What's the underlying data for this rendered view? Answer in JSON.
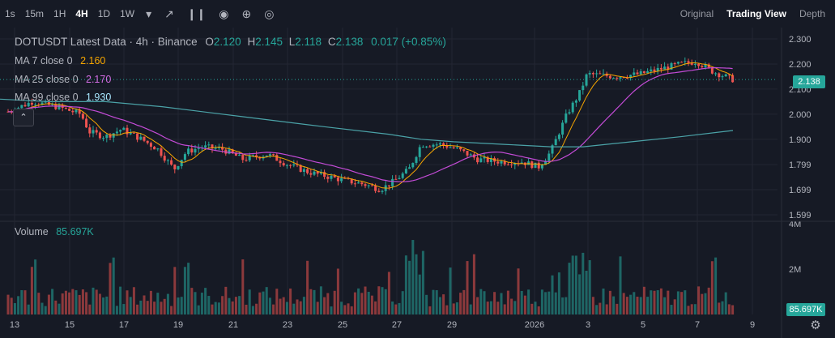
{
  "toolbar": {
    "intervals": [
      "1s",
      "15m",
      "1H",
      "4H",
      "1D",
      "1W"
    ],
    "active_interval": "4H",
    "views": [
      "Original",
      "Trading View",
      "Depth"
    ],
    "active_view": "Trading View"
  },
  "legend": {
    "symbol": "DOTUSDT Latest Data · 4h · Binance",
    "open_label": "O",
    "open": "2.120",
    "high_label": "H",
    "high": "2.145",
    "low_label": "L",
    "low": "2.118",
    "close_label": "C",
    "close": "2.138",
    "change": "0.017 (+0.85%)",
    "ma7_label": "MA 7 close 0",
    "ma7_value": "2.160",
    "ma25_label": "MA 25 close 0",
    "ma25_value": "2.170",
    "ma99_label": "MA 99 close 0",
    "ma99_value": "1.930",
    "volume_label": "Volume",
    "volume_value": "85.697K"
  },
  "price_tag": "2.138",
  "volume_tag": "85.697K",
  "colors": {
    "up": "#26a69a",
    "down": "#ef5350",
    "ma7": "#f7a600",
    "ma25": "#c34bd6",
    "ma99": "#4ba3a8",
    "bg": "#161a25",
    "grid": "#232632",
    "text": "#d1d4dc"
  },
  "chart_data": {
    "type": "candlestick",
    "price_axis_ticks": [
      "2.300",
      "2.200",
      "2.100",
      "2.000",
      "1.900",
      "1.799",
      "1.699",
      "1.599"
    ],
    "volume_axis_ticks": [
      "4M",
      "2M"
    ],
    "date_ticks": [
      "13",
      "15",
      "17",
      "19",
      "21",
      "23",
      "25",
      "27",
      "29",
      "2026",
      "3",
      "5",
      "7",
      "9"
    ],
    "ylim": [
      1.58,
      2.32
    ],
    "last_price": 2.138,
    "ma99_points": [
      [
        0,
        2.06
      ],
      [
        60,
        2.05
      ],
      [
        130,
        2.05
      ],
      [
        200,
        2.03
      ],
      [
        300,
        1.99
      ],
      [
        400,
        1.95
      ],
      [
        480,
        1.92
      ],
      [
        520,
        1.9
      ],
      [
        560,
        1.89
      ],
      [
        620,
        1.88
      ],
      [
        680,
        1.87
      ],
      [
        720,
        1.87
      ],
      [
        780,
        1.89
      ],
      [
        840,
        1.91
      ],
      [
        905,
        1.935
      ]
    ]
  }
}
